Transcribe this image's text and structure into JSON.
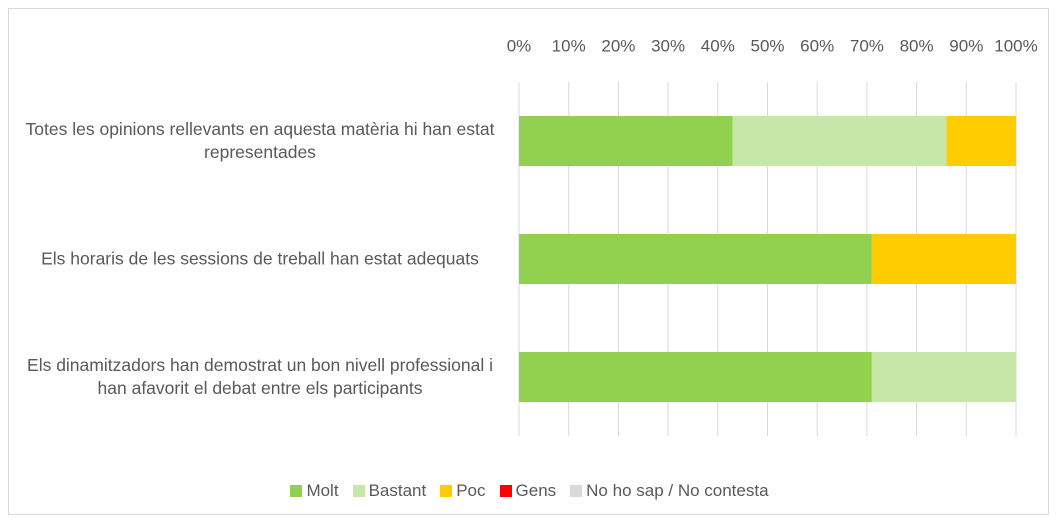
{
  "chart_data": {
    "type": "stacked_barh",
    "categories": [
      "Totes les opinions rellevants en aquesta matèria hi han estat representades",
      "Els horaris de les sessions de treball han estat adequats",
      "Els dinamitzadors han demostrat un bon nivell professional i han afavorit el debat entre els participants"
    ],
    "series": [
      {
        "name": "Molt",
        "color": "#92d050",
        "values": [
          43,
          71,
          71
        ]
      },
      {
        "name": "Bastant",
        "color": "#c6e7a7",
        "values": [
          43,
          0,
          29
        ]
      },
      {
        "name": "Poc",
        "color": "#ffcc00",
        "values": [
          14,
          29,
          0
        ]
      },
      {
        "name": "Gens",
        "color": "#ff0000",
        "values": [
          0,
          0,
          0
        ]
      },
      {
        "name": "No ho sap / No contesta",
        "color": "#d9d9d9",
        "values": [
          0,
          0,
          0
        ]
      }
    ],
    "xlim": [
      0,
      100
    ],
    "xticks": [
      {
        "value": 0,
        "label": "0%"
      },
      {
        "value": 10,
        "label": "10%"
      },
      {
        "value": 20,
        "label": "20%"
      },
      {
        "value": 30,
        "label": "30%"
      },
      {
        "value": 40,
        "label": "40%"
      },
      {
        "value": 50,
        "label": "50%"
      },
      {
        "value": 60,
        "label": "60%"
      },
      {
        "value": 70,
        "label": "70%"
      },
      {
        "value": 80,
        "label": "80%"
      },
      {
        "value": 90,
        "label": "90%"
      },
      {
        "value": 100,
        "label": "100%"
      }
    ],
    "grid": true,
    "legend": "bottom"
  }
}
